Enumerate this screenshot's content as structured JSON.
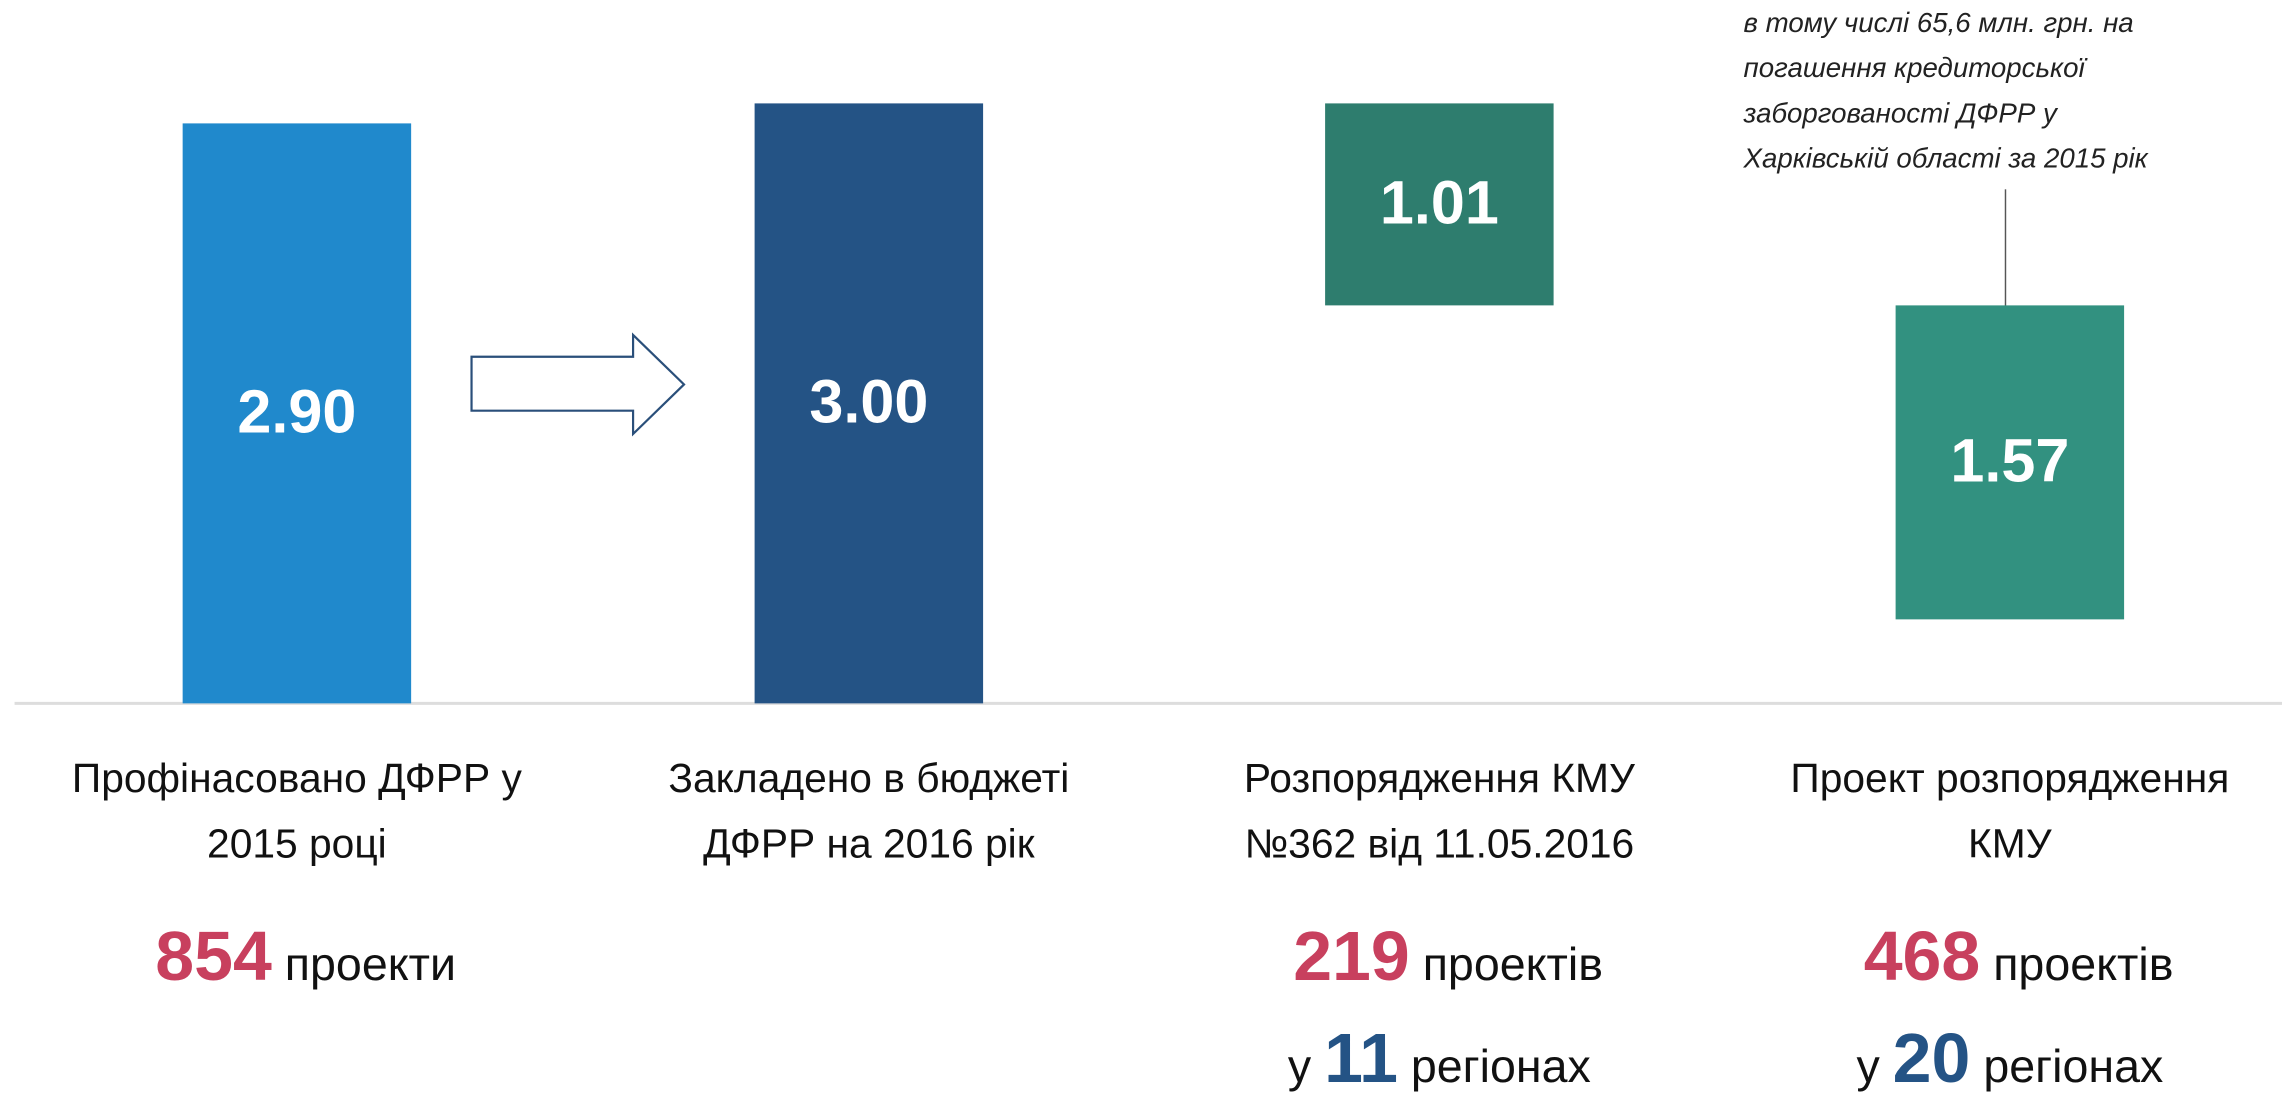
{
  "chart_data": {
    "type": "waterfall",
    "categories": [
      "Профінасовано ДФРР у\n2015 році",
      "Закладено в бюджеті\nДФРР на 2016 рік",
      "Розпорядження КМУ\n№362 від 11.05.2016",
      "Проект розпорядження\nКМУ"
    ],
    "values": [
      2.9,
      3.0,
      1.01,
      1.57
    ],
    "value_labels": [
      "2.90",
      "3.00",
      "1.01",
      "1.57"
    ],
    "measure": [
      "total",
      "total",
      "decrease",
      "decrease"
    ],
    "colors": [
      "#2089cc",
      "#245385",
      "#2e7d6e",
      "#329180"
    ],
    "annotation": [
      "в тому числі 65,6 млн. грн. на",
      "погашення кредиторської",
      "заборгованості ДФРР у",
      "Харківській області за 2015 рік"
    ],
    "stats": [
      {
        "projects": 854,
        "projects_text": "проекти"
      },
      null,
      {
        "projects": 219,
        "projects_text": "проектів",
        "regions_prefix": "у",
        "regions": 11,
        "regions_text": "регіонах"
      },
      {
        "projects": 468,
        "projects_text": "проектів",
        "regions_prefix": "у",
        "regions": 20,
        "regions_text": "регіонах"
      }
    ]
  }
}
